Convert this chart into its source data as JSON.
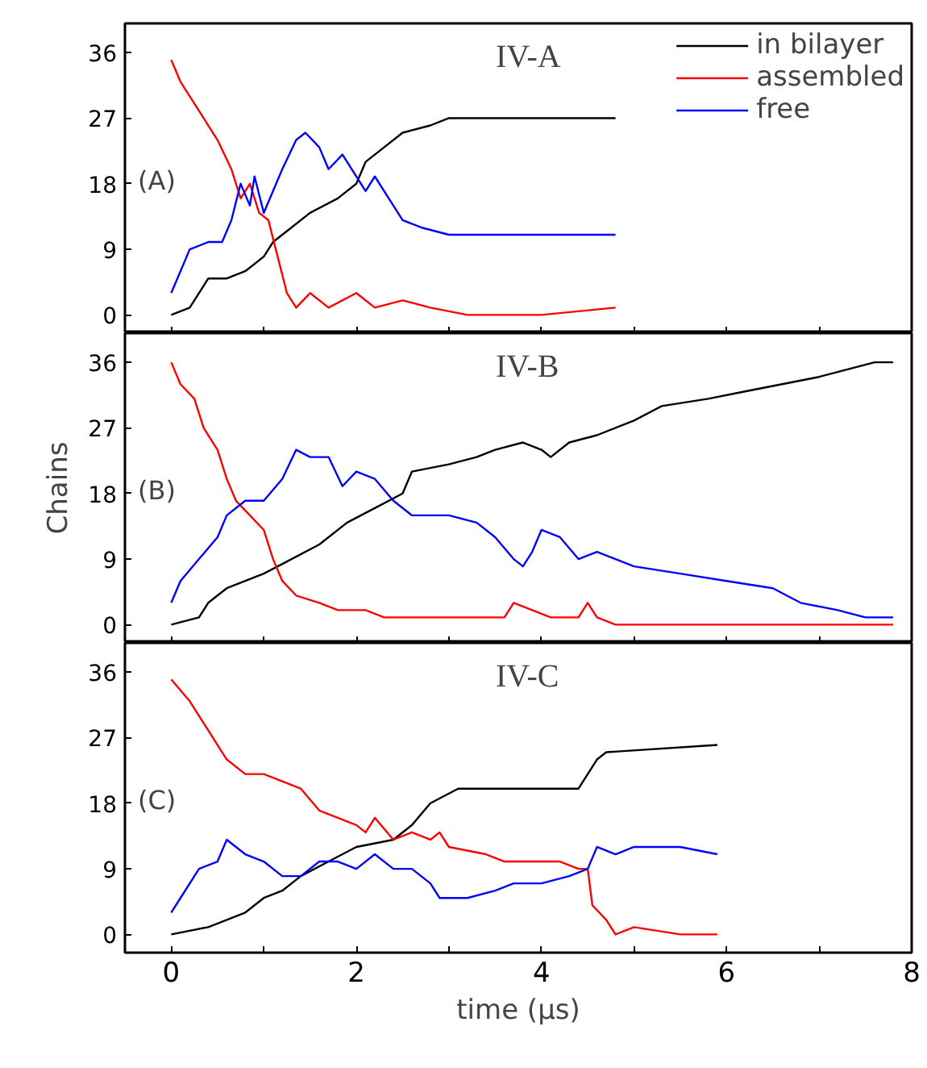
{
  "chart_data": [
    {
      "type": "line",
      "annotations": [
        "IV-A",
        "(A)"
      ],
      "xlim": [
        -0.5,
        8
      ],
      "xticks": [
        0,
        {
          "value": 1,
          "label": null
        },
        2,
        {
          "value": 3,
          "label": null
        },
        4,
        {
          "value": 5,
          "label": null
        },
        6,
        {
          "value": 7,
          "label": null
        },
        8
      ],
      "ylim": [
        -2.5,
        40
      ],
      "yticks": [
        0,
        9,
        18,
        27,
        36
      ],
      "tick_labels": "y",
      "legend": "top right",
      "grid": false,
      "series": [
        {
          "name": "in bilayer",
          "color": "#000000",
          "x": [
            0,
            0.2,
            0.3,
            0.4,
            0.6,
            0.8,
            1.0,
            1.1,
            1.3,
            1.5,
            1.8,
            2.0,
            2.1,
            2.3,
            2.5,
            2.8,
            3.0,
            4.8
          ],
          "values": [
            0,
            1,
            3,
            5,
            5,
            6,
            8,
            10,
            12,
            14,
            16,
            18,
            21,
            23,
            25,
            26,
            27,
            27
          ]
        },
        {
          "name": "assembled",
          "color": "#ff0000",
          "x": [
            0,
            0.1,
            0.2,
            0.35,
            0.5,
            0.65,
            0.75,
            0.85,
            0.95,
            1.05,
            1.15,
            1.25,
            1.35,
            1.5,
            1.7,
            2.0,
            2.2,
            2.5,
            2.8,
            3.2,
            4.0,
            4.8
          ],
          "values": [
            35,
            32,
            30,
            27,
            24,
            20,
            16,
            18,
            14,
            13,
            8,
            3,
            1,
            3,
            1,
            3,
            1,
            2,
            1,
            0,
            0,
            1
          ]
        },
        {
          "name": "free",
          "color": "#0000ff",
          "x": [
            0,
            0.1,
            0.2,
            0.4,
            0.55,
            0.65,
            0.75,
            0.85,
            0.9,
            1.0,
            1.1,
            1.2,
            1.35,
            1.45,
            1.6,
            1.7,
            1.85,
            2.0,
            2.1,
            2.2,
            2.35,
            2.5,
            2.7,
            3.0,
            4.8
          ],
          "values": [
            3,
            6,
            9,
            10,
            10,
            13,
            18,
            15,
            19,
            14,
            17,
            20,
            24,
            25,
            23,
            20,
            22,
            19,
            17,
            19,
            16,
            13,
            12,
            11,
            11
          ]
        }
      ]
    },
    {
      "type": "line",
      "annotations": [
        "IV-B",
        "(B)"
      ],
      "ylabel": "Chains",
      "xlim": [
        -0.5,
        8
      ],
      "xticks": [
        0,
        {
          "value": 1,
          "label": null
        },
        2,
        {
          "value": 3,
          "label": null
        },
        4,
        {
          "value": 5,
          "label": null
        },
        6,
        {
          "value": 7,
          "label": null
        },
        8
      ],
      "ylim": [
        -2.5,
        40
      ],
      "yticks": [
        0,
        9,
        18,
        27,
        36
      ],
      "tick_labels": "y",
      "grid": false,
      "series": [
        {
          "color": "#000000",
          "x": [
            0,
            0.3,
            0.4,
            0.6,
            1.0,
            1.3,
            1.6,
            1.9,
            2.2,
            2.5,
            2.6,
            3.0,
            3.3,
            3.5,
            3.8,
            4.0,
            4.1,
            4.3,
            4.6,
            5.0,
            5.3,
            5.8,
            6.2,
            6.6,
            7.0,
            7.3,
            7.6,
            7.8
          ],
          "values": [
            0,
            1,
            3,
            5,
            7,
            9,
            11,
            14,
            16,
            18,
            21,
            22,
            23,
            24,
            25,
            24,
            23,
            25,
            26,
            28,
            30,
            31,
            32,
            33,
            34,
            35,
            36,
            36
          ]
        },
        {
          "color": "#ff0000",
          "x": [
            0,
            0.1,
            0.25,
            0.35,
            0.5,
            0.6,
            0.7,
            0.85,
            1.0,
            1.1,
            1.2,
            1.35,
            1.6,
            1.8,
            2.1,
            2.3,
            2.6,
            3.0,
            3.3,
            3.6,
            3.7,
            3.9,
            4.1,
            4.4,
            4.5,
            4.6,
            4.8,
            7.8
          ],
          "values": [
            36,
            33,
            31,
            27,
            24,
            20,
            17,
            15,
            13,
            9,
            6,
            4,
            3,
            2,
            2,
            1,
            1,
            1,
            1,
            1,
            3,
            2,
            1,
            1,
            3,
            1,
            0,
            0
          ]
        },
        {
          "color": "#0000ff",
          "x": [
            0,
            0.1,
            0.3,
            0.5,
            0.6,
            0.8,
            1.0,
            1.2,
            1.35,
            1.5,
            1.7,
            1.85,
            2.0,
            2.2,
            2.4,
            2.6,
            3.0,
            3.3,
            3.5,
            3.7,
            3.8,
            3.9,
            4.0,
            4.2,
            4.4,
            4.6,
            4.8,
            5.0,
            5.5,
            6.0,
            6.5,
            6.8,
            7.2,
            7.5,
            7.8
          ],
          "values": [
            3,
            6,
            9,
            12,
            15,
            17,
            17,
            20,
            24,
            23,
            23,
            19,
            21,
            20,
            17,
            15,
            15,
            14,
            12,
            9,
            8,
            10,
            13,
            12,
            9,
            10,
            9,
            8,
            7,
            6,
            5,
            3,
            2,
            1,
            1
          ]
        }
      ]
    },
    {
      "type": "line",
      "annotations": [
        "IV-C",
        "(C)"
      ],
      "xlabel": "time (μs)",
      "xlim": [
        -0.5,
        8
      ],
      "xticks": [
        0,
        {
          "value": 1,
          "label": null
        },
        2,
        {
          "value": 3,
          "label": null
        },
        4,
        {
          "value": 5,
          "label": null
        },
        6,
        {
          "value": 7,
          "label": null
        },
        8
      ],
      "ylim": [
        -2.5,
        40
      ],
      "yticks": [
        0,
        9,
        18,
        27,
        36
      ],
      "grid": false,
      "series": [
        {
          "color": "#000000",
          "x": [
            0,
            0.4,
            0.6,
            0.8,
            1.0,
            1.2,
            1.4,
            1.7,
            2.0,
            2.4,
            2.6,
            2.8,
            3.1,
            4.4,
            4.5,
            4.6,
            4.7,
            5.9
          ],
          "values": [
            0,
            1,
            2,
            3,
            5,
            6,
            8,
            10,
            12,
            13,
            15,
            18,
            20,
            20,
            22,
            24,
            25,
            26
          ]
        },
        {
          "color": "#ff0000",
          "x": [
            0,
            0.2,
            0.4,
            0.6,
            0.8,
            1.0,
            1.2,
            1.4,
            1.6,
            1.8,
            2.0,
            2.1,
            2.2,
            2.4,
            2.6,
            2.8,
            2.9,
            3.0,
            3.4,
            3.6,
            4.2,
            4.4,
            4.5,
            4.55,
            4.7,
            4.8,
            5.0,
            5.5,
            5.9
          ],
          "values": [
            35,
            32,
            28,
            24,
            22,
            22,
            21,
            20,
            17,
            16,
            15,
            14,
            16,
            13,
            14,
            13,
            14,
            12,
            11,
            10,
            10,
            9,
            9,
            4,
            2,
            0,
            1,
            0,
            0
          ]
        },
        {
          "color": "#0000ff",
          "x": [
            0,
            0.1,
            0.3,
            0.5,
            0.6,
            0.8,
            1.0,
            1.2,
            1.4,
            1.6,
            1.8,
            2.0,
            2.2,
            2.4,
            2.6,
            2.8,
            2.9,
            3.0,
            3.2,
            3.5,
            3.7,
            4.0,
            4.3,
            4.5,
            4.6,
            4.8,
            5.0,
            5.5,
            5.9
          ],
          "values": [
            3,
            5,
            9,
            10,
            13,
            11,
            10,
            8,
            8,
            10,
            10,
            9,
            11,
            9,
            9,
            7,
            5,
            5,
            5,
            6,
            7,
            7,
            8,
            9,
            12,
            11,
            12,
            12,
            11
          ]
        }
      ]
    }
  ]
}
